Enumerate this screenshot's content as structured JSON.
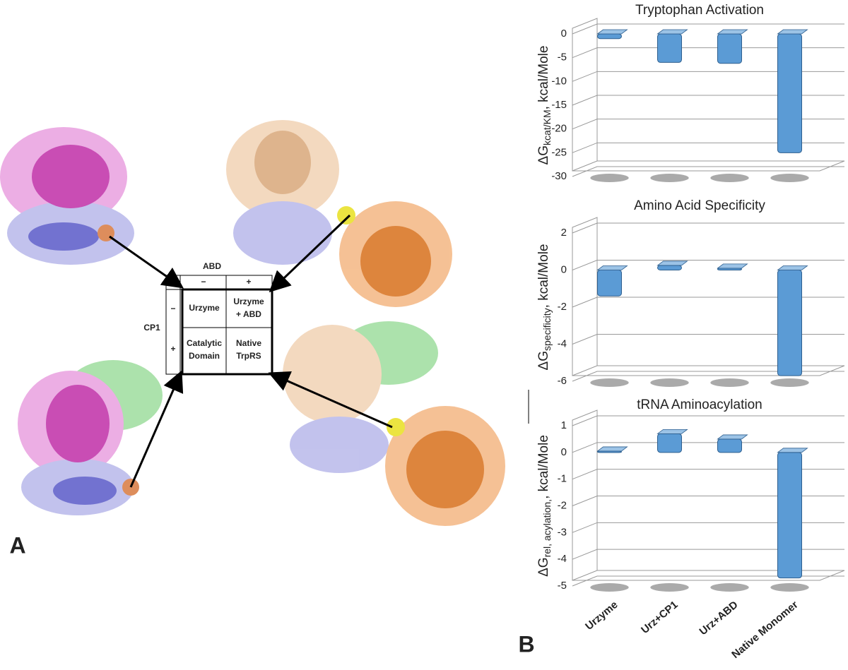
{
  "panel_labels": [
    "A",
    "B"
  ],
  "panel_a": {
    "column_header": "ABD",
    "column_levels": [
      "−",
      "+"
    ],
    "row_header": "CP1",
    "row_levels": [
      "−",
      "+"
    ],
    "cells": [
      [
        [
          "Urzyme"
        ],
        [
          "Urzyme",
          "+ ABD"
        ]
      ],
      [
        [
          "Catalytic",
          "Domain"
        ],
        [
          "Native",
          "TrpRS"
        ]
      ]
    ]
  },
  "chart_data": [
    {
      "type": "bar",
      "title": "Tryptophan Activation",
      "y_label": {
        "main": "ΔG",
        "sub": "kcat/KM",
        "rest": ", kcal/Mole"
      },
      "categories": [
        null,
        null,
        null,
        null
      ],
      "values": [
        -1,
        -6,
        -6.2,
        -25
      ],
      "color": "#5b9bd5",
      "ylim": [
        -30,
        0
      ],
      "yticks": [
        0,
        -5,
        -10,
        -15,
        -20,
        -25,
        -30
      ],
      "grid": true
    },
    {
      "type": "bar",
      "title": "Amino Acid Specificity",
      "y_label": {
        "main": "ΔG",
        "sub": "specificity",
        "rest": ", kcal/Mole"
      },
      "categories": [
        null,
        null,
        null,
        null
      ],
      "values": [
        -1.4,
        0.25,
        0.1,
        -5.7
      ],
      "color": "#5b9bd5",
      "ylim": [
        -6,
        2
      ],
      "yticks": [
        2,
        0,
        -2,
        -4,
        -6
      ],
      "grid": true
    },
    {
      "type": "bar",
      "title": "tRNA Aminoacylation",
      "y_label": {
        "main": "ΔG",
        "sub": "rel, acylation,",
        "rest": ", kcal/Mole"
      },
      "categories": [
        "Urzyme",
        "Urz+CP1",
        "Urz+ABD",
        "Native Monomer"
      ],
      "values": [
        0.05,
        0.7,
        0.5,
        -4.7
      ],
      "color": "#5b9bd5",
      "ylim": [
        -5,
        1
      ],
      "yticks": [
        1,
        0,
        -1,
        -2,
        -3,
        -4,
        -5
      ],
      "grid": true
    }
  ]
}
